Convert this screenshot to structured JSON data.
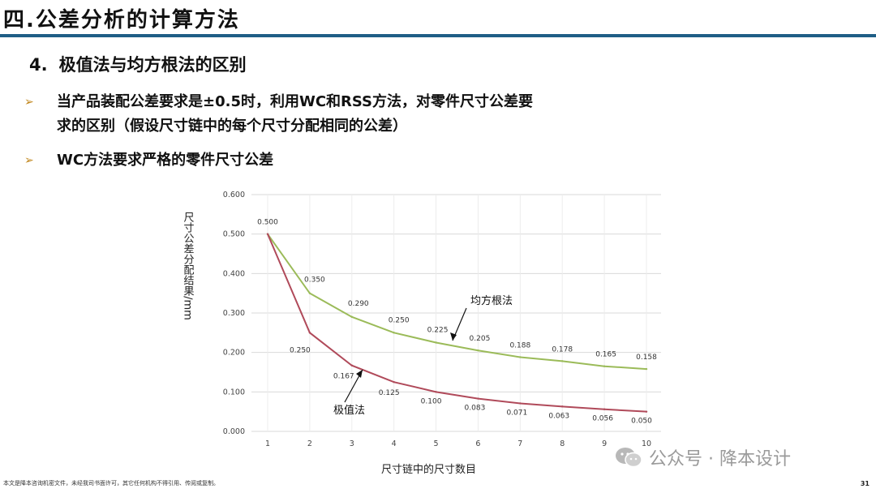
{
  "header": {
    "title": "四.公差分析的计算方法"
  },
  "section": {
    "number": "4.",
    "title": "极值法与均方根法的区别"
  },
  "bullets": [
    {
      "icon": "arrow-bullet-icon",
      "lines": [
        "当产品装配公差要求是±0.5时，利用WC和RSS方法，对零件尺寸公差要",
        "求的区别（假设尺寸链中的每个尺寸分配相同的公差）"
      ]
    },
    {
      "icon": "arrow-bullet-icon",
      "lines": [
        "WC方法要求严格的零件尺寸公差"
      ]
    }
  ],
  "chart_data": {
    "type": "line",
    "x": [
      1,
      2,
      3,
      4,
      5,
      6,
      7,
      8,
      9,
      10
    ],
    "xlim": [
      1,
      10
    ],
    "ylim": [
      0,
      0.6
    ],
    "yticks": [
      "0.000",
      "0.100",
      "0.200",
      "0.300",
      "0.400",
      "0.500",
      "0.600"
    ],
    "xticks": [
      "1",
      "2",
      "3",
      "4",
      "5",
      "6",
      "7",
      "8",
      "9",
      "10"
    ],
    "xlabel": "尺寸链中的尺寸数目",
    "ylabel": "尺寸公差分配结果/mm",
    "grid": true,
    "series": [
      {
        "name": "均方根法",
        "color": "#9bbb59",
        "values": [
          0.5,
          0.35,
          0.29,
          0.25,
          0.225,
          0.205,
          0.188,
          0.178,
          0.165,
          0.158
        ],
        "labels": [
          "0.500",
          "0.350",
          "0.290",
          "0.250",
          "0.225",
          "0.205",
          "0.188",
          "0.178",
          "0.165",
          "0.158"
        ]
      },
      {
        "name": "极值法",
        "color": "#b04a5a",
        "values": [
          0.5,
          0.25,
          0.167,
          0.125,
          0.1,
          0.083,
          0.071,
          0.063,
          0.056,
          0.05
        ],
        "labels": [
          "0.500",
          "0.250",
          "0.167",
          "0.125",
          "0.100",
          "0.083",
          "0.071",
          "0.063",
          "0.056",
          "0.050"
        ]
      }
    ],
    "annotations": [
      "均方根法",
      "极值法"
    ]
  },
  "watermark": {
    "text": "公众号 · 降本设计",
    "icon": "wechat-icon"
  },
  "footer": {
    "note": "本文是降本咨询机密文件，未经我司书面许可，其它任何机构不得引用、传阅或复制。",
    "page": "31"
  }
}
